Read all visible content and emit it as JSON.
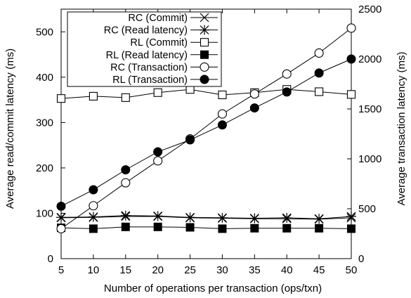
{
  "chart_data": {
    "type": "line",
    "xlabel": "Number of operations per transaction (ops/txn)",
    "ylabel_left": "Average read/commit latency (ms)",
    "ylabel_right": "Average transaction latency (ms)",
    "x": [
      5,
      10,
      15,
      20,
      25,
      30,
      35,
      40,
      45,
      50
    ],
    "x_ticks": [
      "5",
      "10",
      "15",
      "20",
      "25",
      "30",
      "35",
      "40",
      "45",
      "50"
    ],
    "ylim_left": [
      0,
      550
    ],
    "yticks_left": [
      "0",
      "100",
      "200",
      "300",
      "400",
      "500"
    ],
    "ylim_right": [
      0,
      2500
    ],
    "yticks_right": [
      "0",
      "500",
      "1000",
      "1500",
      "2000",
      "2500"
    ],
    "grid": false,
    "legend_position": "top-left",
    "series": [
      {
        "name": "RC (Commit)",
        "marker": "x",
        "axis": "left",
        "values": [
          90,
          91,
          93,
          93,
          90,
          89,
          88,
          88,
          87,
          90
        ]
      },
      {
        "name": "RC (Read latency)",
        "marker": "star",
        "axis": "left",
        "values": [
          91,
          92,
          95,
          94,
          91,
          90,
          89,
          90,
          88,
          93
        ]
      },
      {
        "name": "RL (Commit)",
        "marker": "square-open",
        "axis": "left",
        "values": [
          353,
          358,
          355,
          366,
          373,
          361,
          366,
          373,
          368,
          362
        ]
      },
      {
        "name": "RL (Read latency)",
        "marker": "square-filled",
        "axis": "left",
        "values": [
          68,
          66,
          70,
          70,
          69,
          66,
          67,
          67,
          67,
          66
        ]
      },
      {
        "name": "RC (Transaction)",
        "marker": "circle-open",
        "axis": "right",
        "values": [
          300,
          530,
          760,
          980,
          1200,
          1450,
          1650,
          1850,
          2060,
          2310
        ]
      },
      {
        "name": "RL (Transaction)",
        "marker": "circle-filled",
        "axis": "right",
        "values": [
          525,
          690,
          890,
          1070,
          1190,
          1340,
          1510,
          1670,
          1860,
          2000
        ]
      }
    ]
  }
}
